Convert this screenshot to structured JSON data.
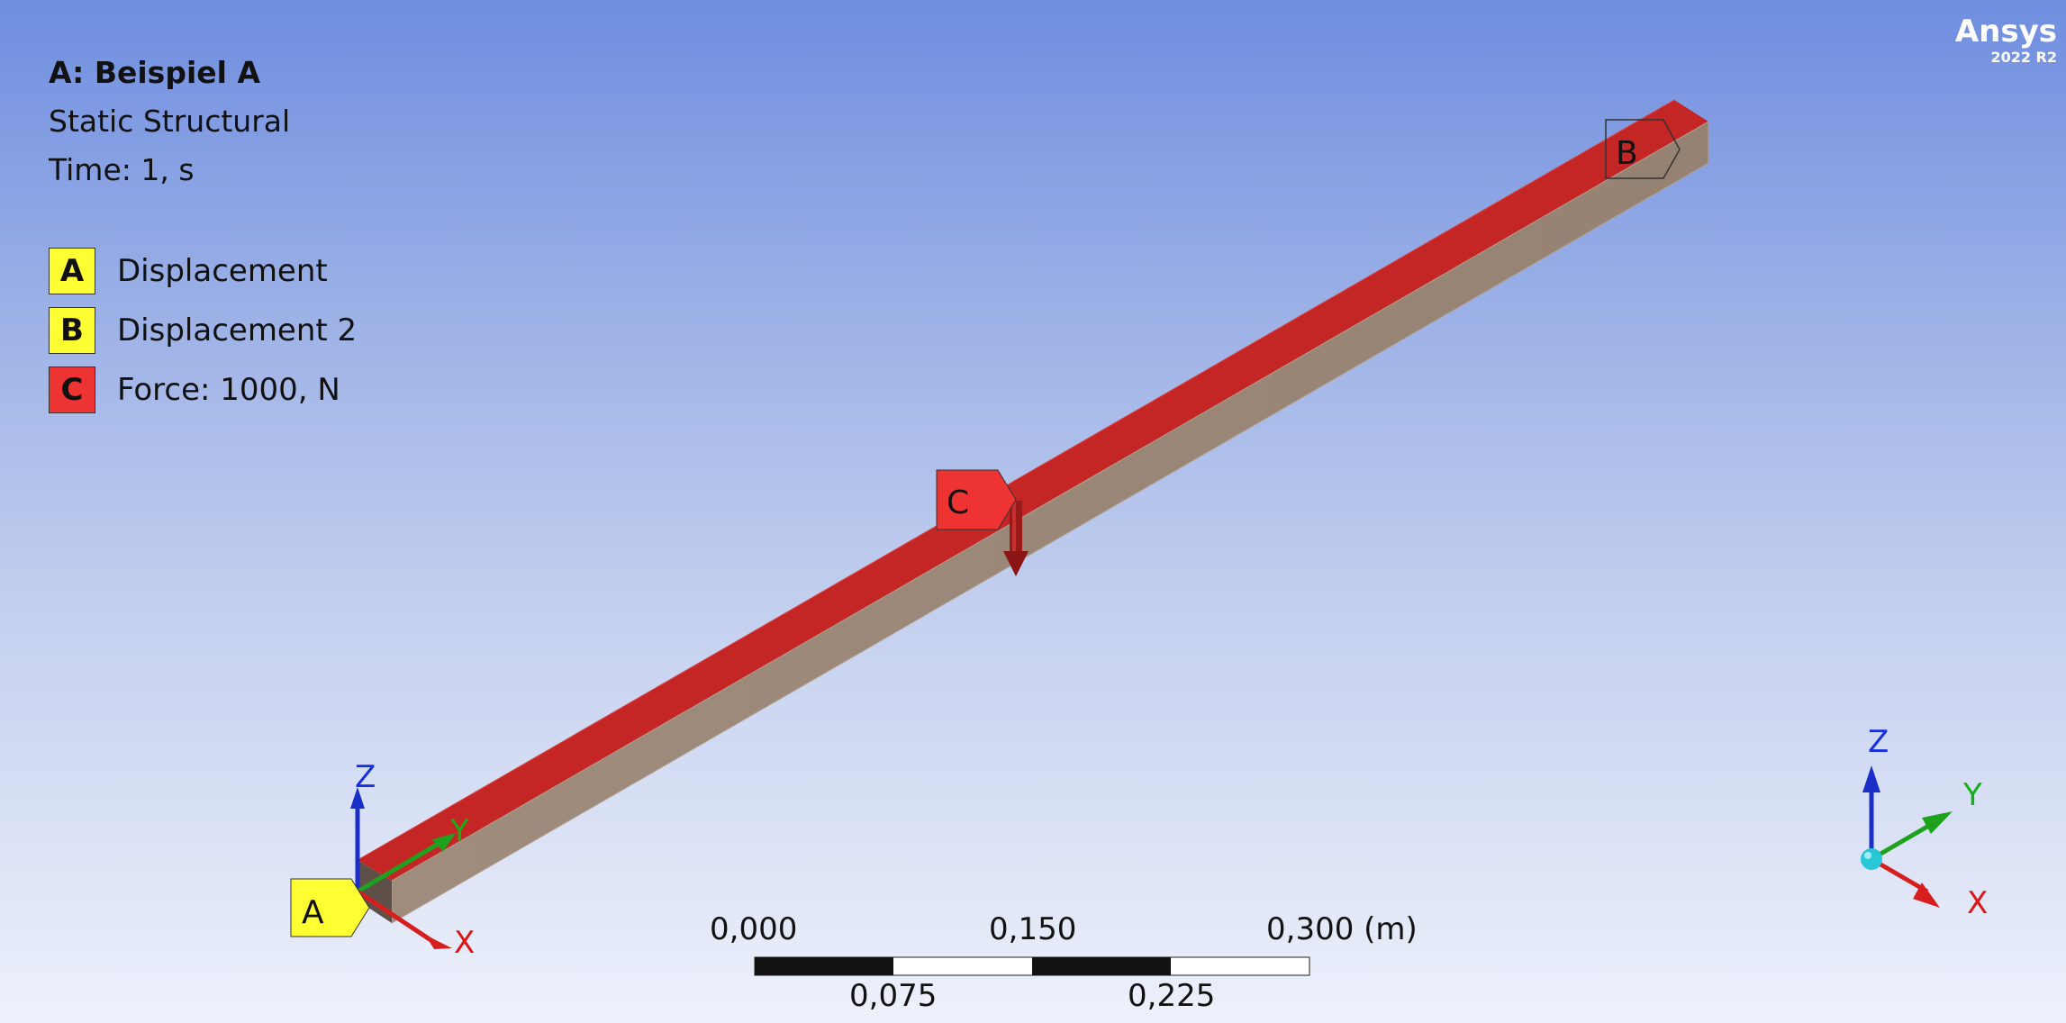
{
  "header": {
    "title": "A: Beispiel A",
    "analysis_type": "Static Structural",
    "time": "Time: 1, s"
  },
  "legend": [
    {
      "letter": "A",
      "label": "Displacement",
      "color": "#ffff33"
    },
    {
      "letter": "B",
      "label": "Displacement 2",
      "color": "#ffff33"
    },
    {
      "letter": "C",
      "label": "Force: 1000, N",
      "color": "#ee3333"
    }
  ],
  "brand": {
    "name": "Ansys",
    "version": "2022 R2"
  },
  "scene_labels": {
    "a": "A",
    "b": "B",
    "c": "C"
  },
  "triad": {
    "x": "X",
    "y": "Y",
    "z": "Z"
  },
  "scale_bar": {
    "top_labels": [
      "0,000",
      "0,150",
      "0,300 (m)"
    ],
    "bottom_labels": [
      "0,075",
      "0,225"
    ]
  },
  "colors": {
    "beam_top": "#c42626",
    "beam_side": "#9c8878",
    "beam_end": "#5e5048",
    "axis_x": "#d61e1e",
    "axis_y": "#1ea21e",
    "axis_z": "#1a2ec8",
    "label_x": "#e01515",
    "label_y": "#15b015",
    "label_z": "#1530e0"
  }
}
